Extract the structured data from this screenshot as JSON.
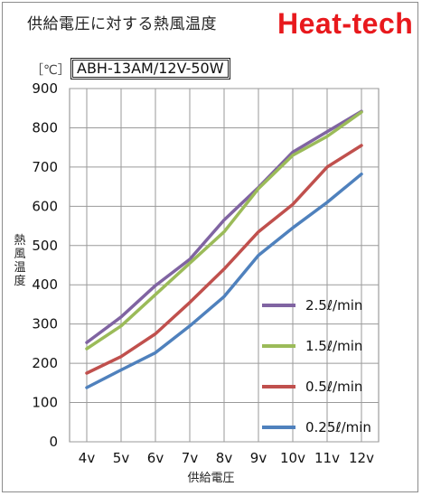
{
  "header": {
    "title": "供給電圧に対する熱風温度",
    "brand": "Heat-tech",
    "brand_color": "#e8191d"
  },
  "chart_data": {
    "type": "line",
    "unit_label": "［℃］",
    "model": "ABH-13AM/12V-50W",
    "ylabel": "熱風温度",
    "xlabel": "供給電圧",
    "ylim": [
      0,
      900
    ],
    "yticks": [
      0,
      100,
      200,
      300,
      400,
      500,
      600,
      700,
      800,
      900
    ],
    "grid": true,
    "legend_position": "lower-right",
    "categories": [
      "4v",
      "5v",
      "6v",
      "7v",
      "8v",
      "9v",
      "10v",
      "11v",
      "12v"
    ],
    "series": [
      {
        "name": "2.5ℓ/min",
        "color": "#8064a2",
        "values": [
          253,
          318,
          398,
          465,
          565,
          648,
          738,
          790,
          842
        ]
      },
      {
        "name": "1.5ℓ/min",
        "color": "#9bbb59",
        "values": [
          237,
          295,
          375,
          455,
          535,
          645,
          730,
          778,
          840
        ]
      },
      {
        "name": "0.5ℓ/min",
        "color": "#c0504d",
        "values": [
          175,
          217,
          275,
          355,
          440,
          535,
          605,
          700,
          755
        ]
      },
      {
        "name": "0.25ℓ/min",
        "color": "#4f81bd",
        "values": [
          138,
          183,
          227,
          295,
          370,
          475,
          545,
          610,
          682
        ]
      }
    ]
  }
}
